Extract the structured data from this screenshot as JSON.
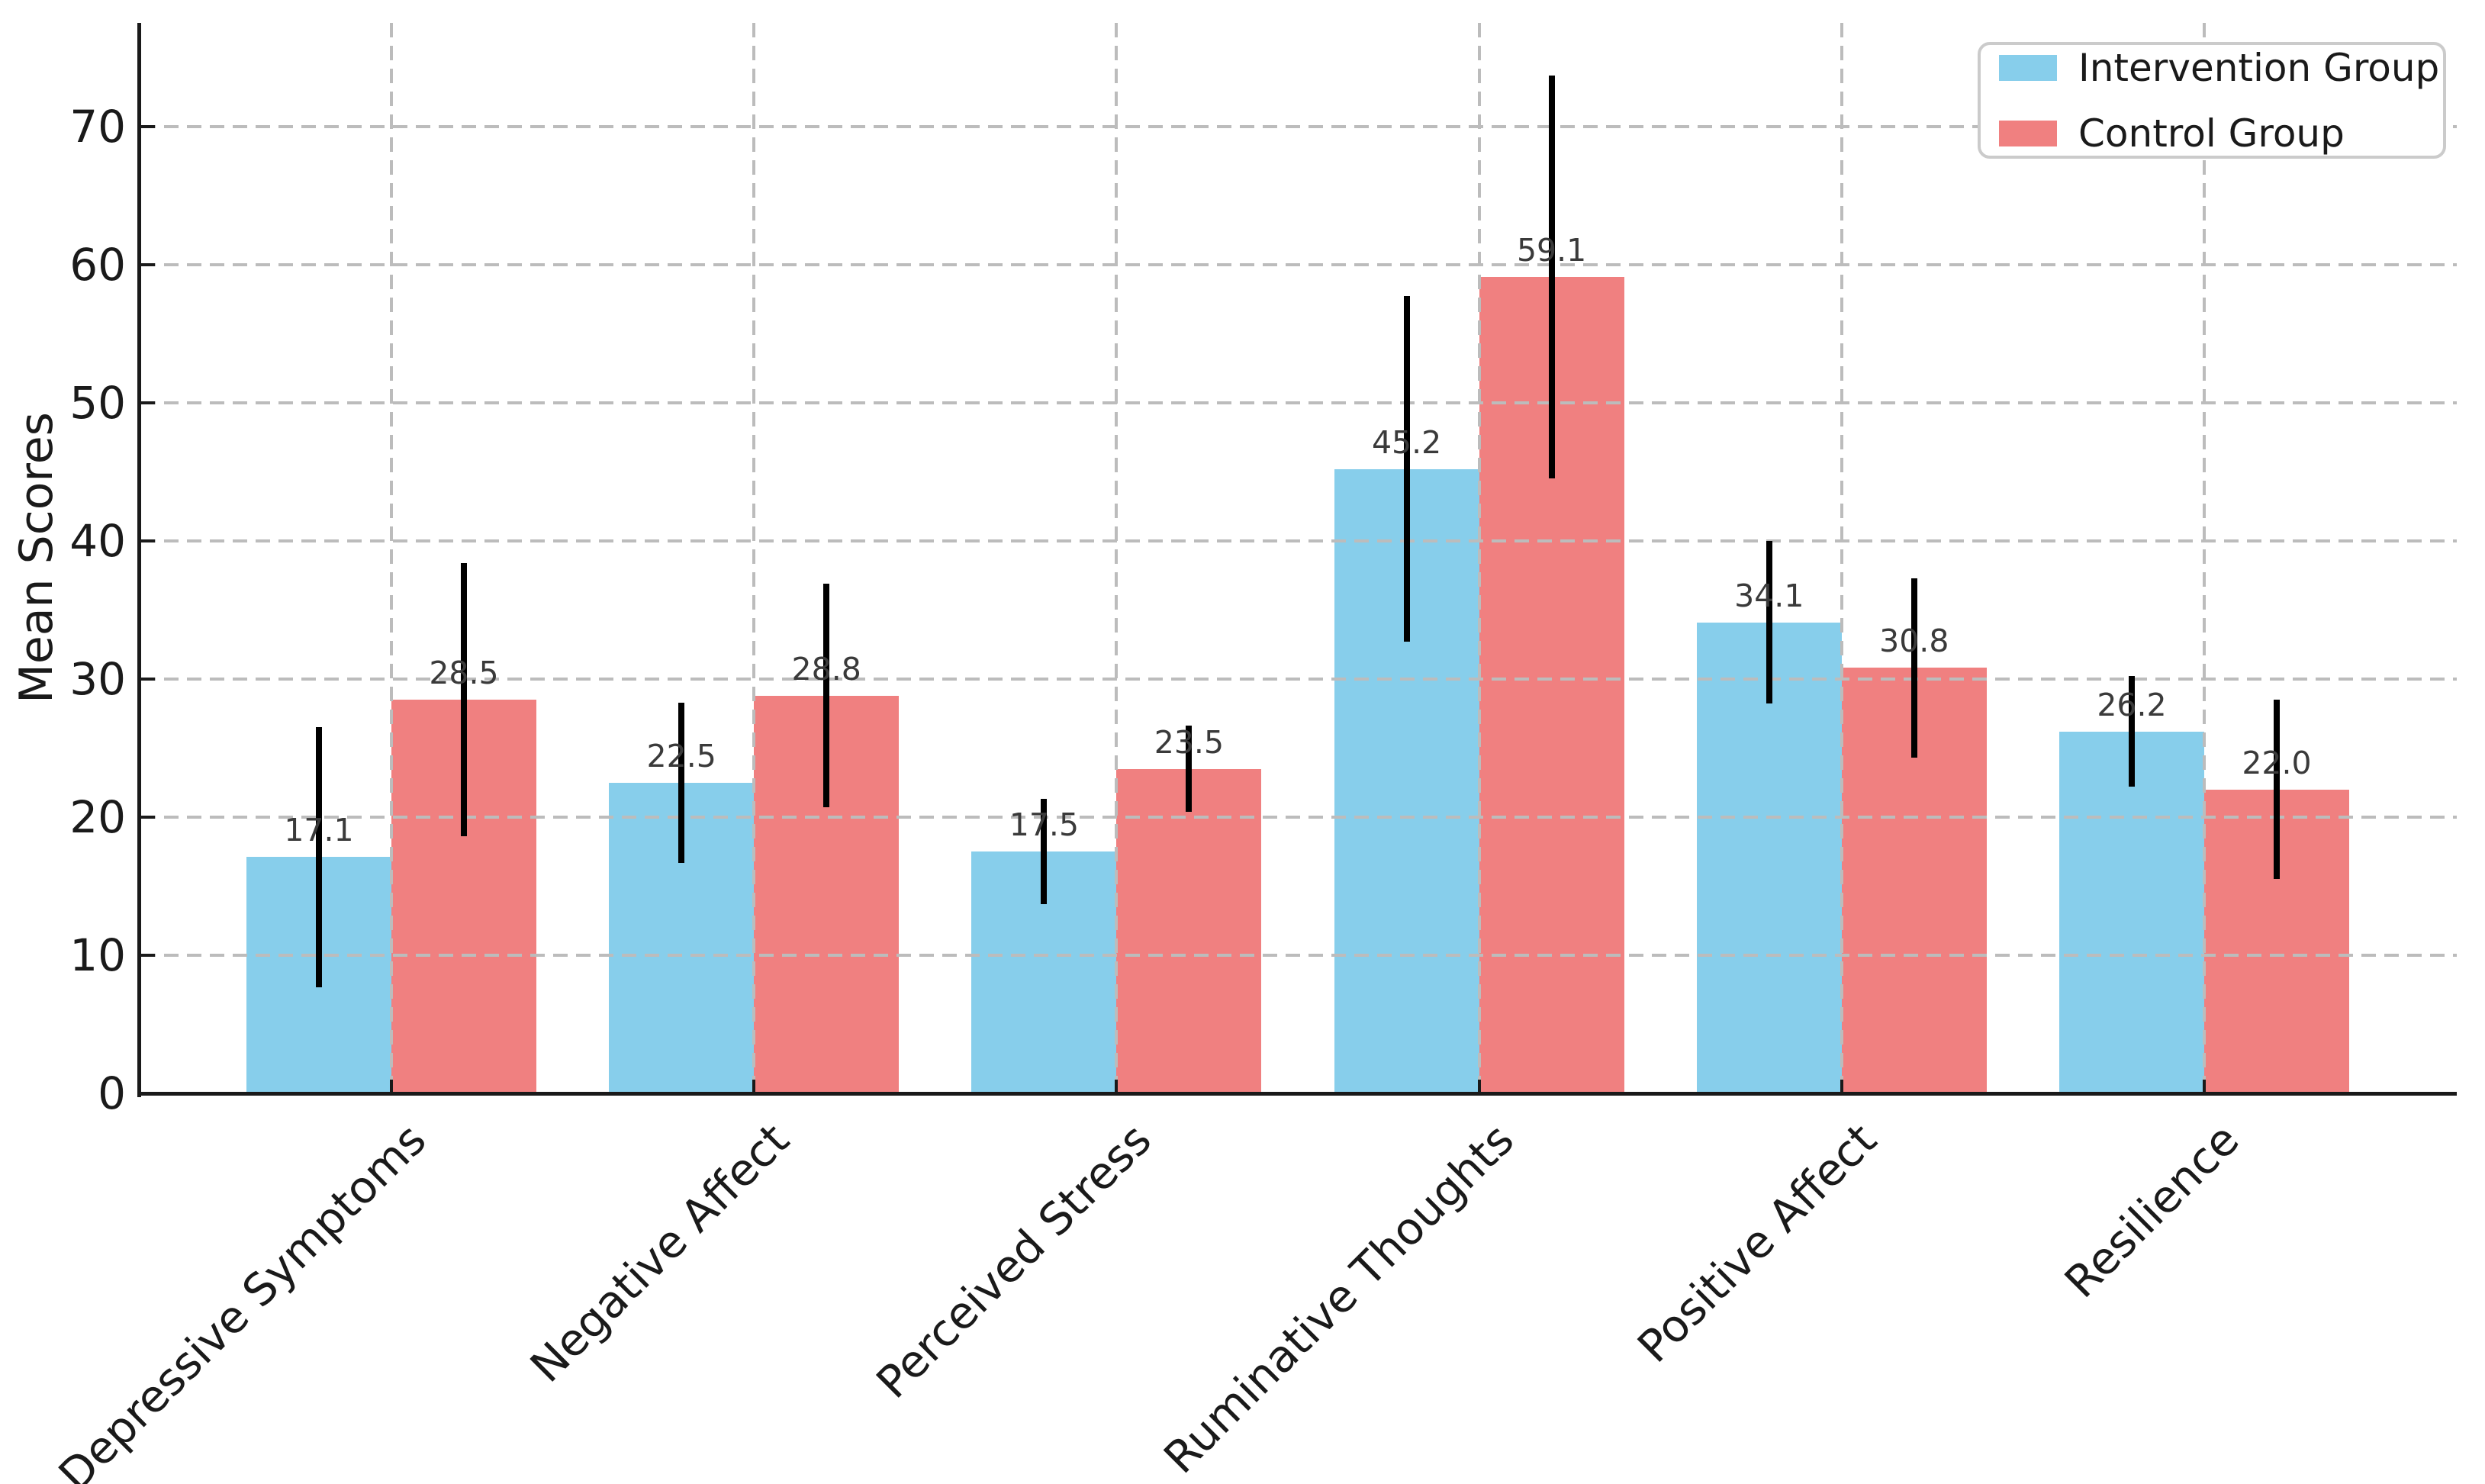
{
  "figure": {
    "background": "#ffffff"
  },
  "chart_data": {
    "type": "bar",
    "title": "",
    "xlabel": "",
    "ylabel": "Mean Scores",
    "categories": [
      "Depressive Symptoms",
      "Negative Affect",
      "Perceived Stress",
      "Ruminative Thoughts",
      "Positive Affect",
      "Resilience"
    ],
    "series": [
      {
        "name": "Intervention Group",
        "color": "#87CEEB",
        "values": [
          17.1,
          22.5,
          17.5,
          45.2,
          34.1,
          26.2
        ],
        "errors": [
          9.4,
          5.8,
          3.8,
          12.5,
          5.9,
          4.0
        ]
      },
      {
        "name": "Control Group",
        "color": "#F08080",
        "values": [
          28.5,
          28.8,
          23.5,
          59.1,
          30.8,
          22.0
        ],
        "errors": [
          9.9,
          8.1,
          3.1,
          14.6,
          6.5,
          6.5
        ]
      }
    ],
    "yticks": [
      0,
      10,
      20,
      30,
      40,
      50,
      60,
      70
    ],
    "ytick_labels": [
      "0",
      "10",
      "20",
      "30",
      "40",
      "50",
      "60",
      "70"
    ],
    "ylim": [
      0,
      77.5
    ],
    "grid": {
      "on": true,
      "style": "dashed",
      "color": "#bcbcbc",
      "horizontal": true,
      "vertical": true
    },
    "legend": {
      "position": "upper-right",
      "entries": [
        "Intervention Group",
        "Control Group"
      ]
    },
    "error_bars": {
      "color": "#000000",
      "caps": false
    },
    "value_labels": {
      "shown": true,
      "decimals": 1,
      "color": "#3a3a3a"
    }
  }
}
